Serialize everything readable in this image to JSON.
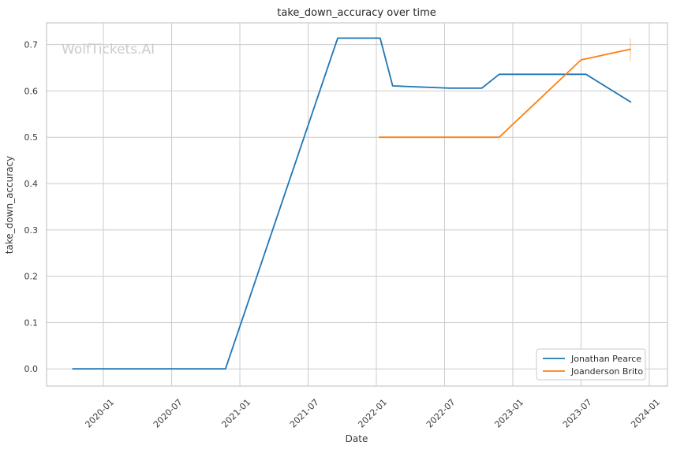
{
  "chart_data": {
    "type": "line",
    "title": "take_down_accuracy over time",
    "xlabel": "Date",
    "ylabel": "take_down_accuracy",
    "watermark": "WolfTickets.AI",
    "grid": true,
    "legend_position": "lower right",
    "x_unit": "months relative to 2020-01",
    "xlim_months": [
      -5.0,
      49.6
    ],
    "ylim": [
      -0.037,
      0.747
    ],
    "x_tick_labels": [
      "2020-01",
      "2020-07",
      "2021-01",
      "2021-07",
      "2022-01",
      "2022-07",
      "2023-01",
      "2023-07",
      "2024-01"
    ],
    "y_ticks": [
      0.0,
      0.1,
      0.2,
      0.3,
      0.4,
      0.5,
      0.6,
      0.7
    ],
    "y_tick_labels": [
      "0.0",
      "0.1",
      "0.2",
      "0.3",
      "0.4",
      "0.5",
      "0.6",
      "0.7"
    ],
    "series": [
      {
        "name": "Jonathan Pearce",
        "color": "#1f77b4",
        "points": [
          [
            "2019-10-10",
            0.0
          ],
          [
            "2020-11-23",
            0.0
          ],
          [
            "2021-09-19",
            0.714
          ],
          [
            "2022-01-11",
            0.714
          ],
          [
            "2022-02-14",
            0.611
          ],
          [
            "2022-07-14",
            0.606
          ],
          [
            "2022-10-09",
            0.606
          ],
          [
            "2022-11-25",
            0.636
          ],
          [
            "2023-07-14",
            0.636
          ],
          [
            "2023-11-12",
            0.576
          ]
        ]
      },
      {
        "name": "Joanderson Brito",
        "color": "#ff7f0e",
        "points": [
          [
            "2022-01-09",
            0.5
          ],
          [
            "2022-11-25",
            0.5
          ],
          [
            "2023-07-01",
            0.667
          ],
          [
            "2023-11-11",
            0.69
          ]
        ],
        "error_bar": {
          "date": "2023-11-11",
          "low": 0.665,
          "high": 0.714
        }
      }
    ],
    "colors": {
      "grid": "#cccccc",
      "spine": "#c8c8c8",
      "background": "#ffffff",
      "watermark": "#cbcbcb",
      "text": "#3b3b3b"
    }
  }
}
